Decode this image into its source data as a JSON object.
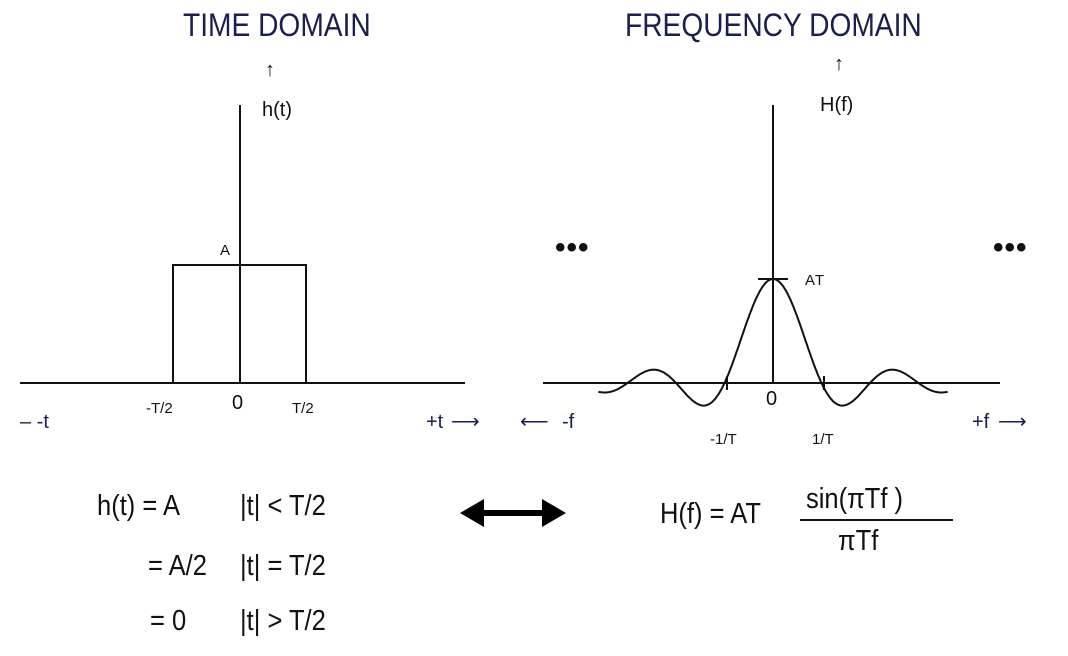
{
  "time_domain": {
    "title": "TIME DOMAIN",
    "y_label": "h(t)",
    "amplitude_label": "A",
    "tick_neg": "-T/2",
    "tick_zero": "0",
    "tick_pos": "T/2",
    "axis_neg_label": "– -t",
    "axis_pos_label": "+t",
    "arrow_glyph": "⟶",
    "up_arrow_glyph": "↑"
  },
  "frequency_domain": {
    "title": "FREQUENCY DOMAIN",
    "y_label": "H(f)",
    "peak_label": "AT",
    "tick_zero": "0",
    "tick_neg": "-1/T",
    "tick_pos": "1/T",
    "axis_neg_label": "-f",
    "axis_pos_label": "+f",
    "left_arrow_glyph": "⟵",
    "arrow_glyph": "⟶",
    "up_arrow_glyph": "↑",
    "ellipsis_left": "•••",
    "ellipsis_right": "•••"
  },
  "equations": {
    "time_lines": [
      {
        "lhs": "h(t) = A",
        "cond": "|t| < T/2"
      },
      {
        "lhs": "= A/2",
        "cond": "|t| = T/2"
      },
      {
        "lhs": "= 0",
        "cond": "|t| > T/2"
      }
    ],
    "freq_lhs": "H(f) = AT",
    "freq_numerator": "sin(πTf )",
    "freq_denominator": "πTf"
  }
}
